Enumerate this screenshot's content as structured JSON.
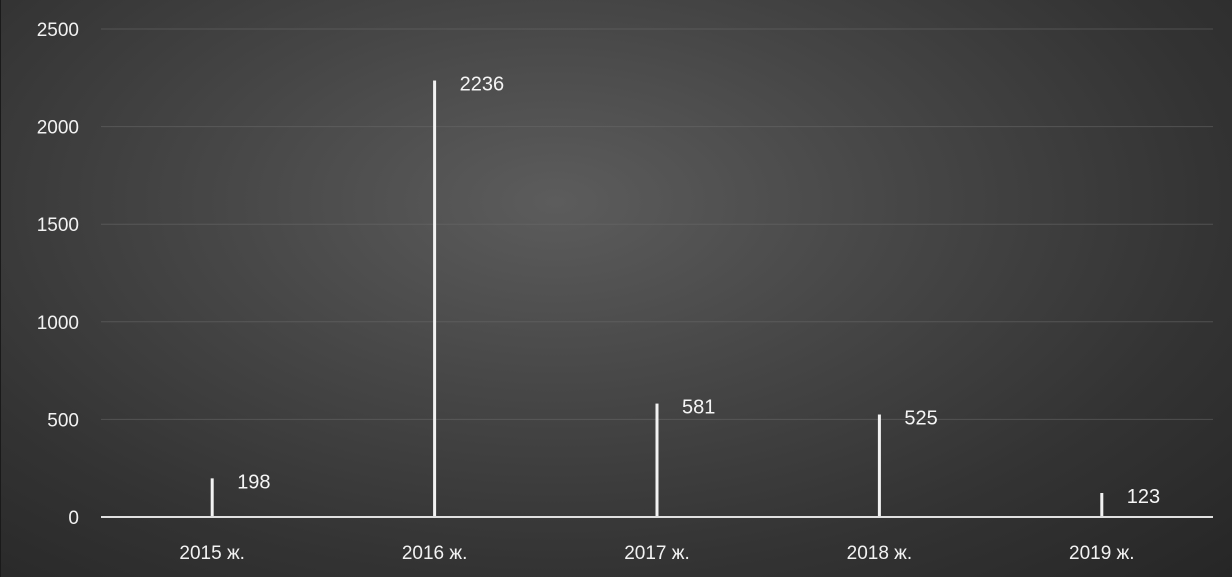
{
  "chart_data": {
    "type": "bar",
    "title": "",
    "xlabel": "",
    "ylabel": "",
    "categories": [
      "2015 ж.",
      "2016 ж.",
      "2017 ж.",
      "2018  ж.",
      "2019 ж."
    ],
    "values": [
      198,
      2236,
      581,
      525,
      123
    ],
    "data_labels": [
      "198",
      "2236",
      "581",
      "525",
      "123"
    ],
    "ylim": [
      0,
      2500
    ],
    "yticks": [
      0,
      500,
      1000,
      1500,
      2000,
      2500
    ],
    "ytick_labels": [
      "0",
      "500",
      "1000",
      "1500",
      "2000",
      "2500"
    ],
    "grid": true,
    "legend": "none",
    "colors": {
      "bar": "#f2f2f2",
      "text": "#f2f2f2",
      "gridline": "#6a6a6a",
      "background": "#474747"
    }
  }
}
